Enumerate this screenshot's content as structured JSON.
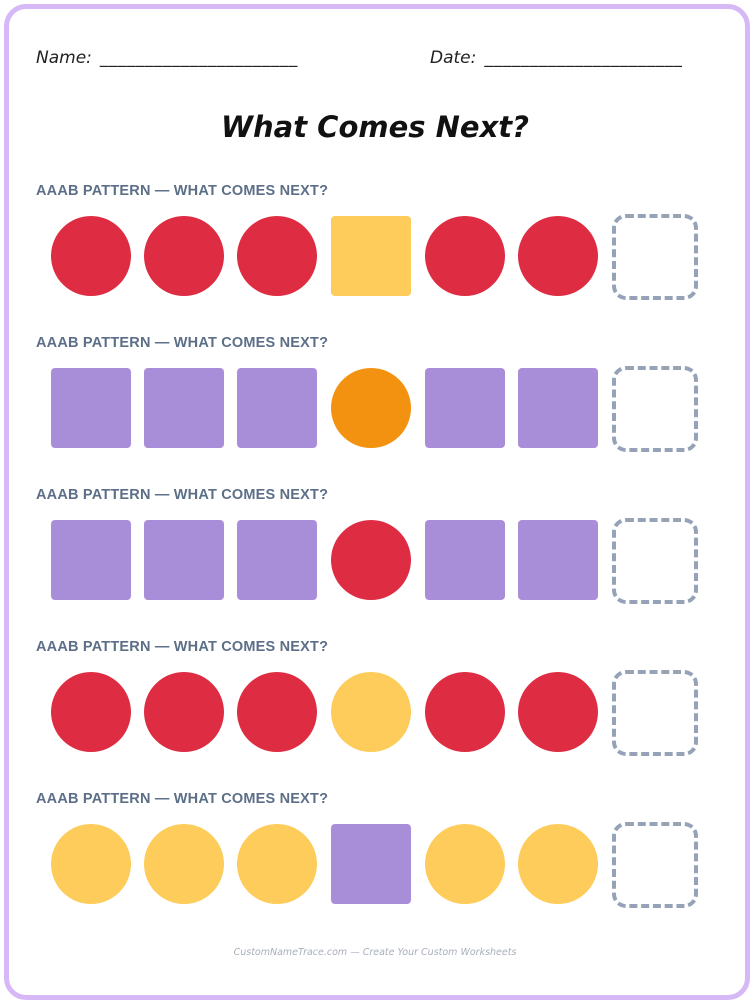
{
  "header": {
    "name_label": "Name:",
    "name_line": "______________________",
    "date_label": "Date:",
    "date_line": "______________________"
  },
  "title": "What Comes Next?",
  "colors": {
    "red": "#de2c43",
    "yellow": "#fdcc5a",
    "purple": "#a88ed9",
    "orange": "#f39210",
    "border": "#d7b8f7",
    "label": "#5c6f87",
    "dashed_box": "#95a2b7"
  },
  "rows": [
    {
      "label": "AAAB PATTERN — WHAT COMES NEXT?",
      "shapes": [
        {
          "shape": "circle",
          "color": "red"
        },
        {
          "shape": "circle",
          "color": "red"
        },
        {
          "shape": "circle",
          "color": "red"
        },
        {
          "shape": "square",
          "color": "yellow"
        },
        {
          "shape": "circle",
          "color": "red"
        },
        {
          "shape": "circle",
          "color": "red"
        }
      ]
    },
    {
      "label": "AAAB PATTERN — WHAT COMES NEXT?",
      "shapes": [
        {
          "shape": "square",
          "color": "purple"
        },
        {
          "shape": "square",
          "color": "purple"
        },
        {
          "shape": "square",
          "color": "purple"
        },
        {
          "shape": "circle",
          "color": "orange"
        },
        {
          "shape": "square",
          "color": "purple"
        },
        {
          "shape": "square",
          "color": "purple"
        }
      ]
    },
    {
      "label": "AAAB PATTERN — WHAT COMES NEXT?",
      "shapes": [
        {
          "shape": "square",
          "color": "purple"
        },
        {
          "shape": "square",
          "color": "purple"
        },
        {
          "shape": "square",
          "color": "purple"
        },
        {
          "shape": "circle",
          "color": "red"
        },
        {
          "shape": "square",
          "color": "purple"
        },
        {
          "shape": "square",
          "color": "purple"
        }
      ]
    },
    {
      "label": "AAAB PATTERN — WHAT COMES NEXT?",
      "shapes": [
        {
          "shape": "circle",
          "color": "red"
        },
        {
          "shape": "circle",
          "color": "red"
        },
        {
          "shape": "circle",
          "color": "red"
        },
        {
          "shape": "circle",
          "color": "yellow"
        },
        {
          "shape": "circle",
          "color": "red"
        },
        {
          "shape": "circle",
          "color": "red"
        }
      ]
    },
    {
      "label": "AAAB PATTERN — WHAT COMES NEXT?",
      "shapes": [
        {
          "shape": "circle",
          "color": "yellow"
        },
        {
          "shape": "circle",
          "color": "yellow"
        },
        {
          "shape": "circle",
          "color": "yellow"
        },
        {
          "shape": "square",
          "color": "purple"
        },
        {
          "shape": "circle",
          "color": "yellow"
        },
        {
          "shape": "circle",
          "color": "yellow"
        }
      ]
    }
  ],
  "footer": "CustomNameTrace.com — Create Your Custom Worksheets"
}
